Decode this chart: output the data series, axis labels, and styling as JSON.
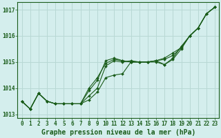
{
  "xlabel": "Graphe pression niveau de la mer (hPa)",
  "bg_color": "#d4eeed",
  "grid_color": "#b8d8d4",
  "line_color": "#1a5c1a",
  "marker_color": "#1a5c1a",
  "hours": [
    0,
    1,
    2,
    3,
    4,
    5,
    6,
    7,
    8,
    9,
    10,
    11,
    12,
    13,
    14,
    15,
    16,
    17,
    18,
    19,
    20,
    21,
    22,
    23
  ],
  "series": [
    [
      1013.5,
      1013.2,
      1013.8,
      1013.5,
      1013.4,
      1013.4,
      1013.4,
      1013.4,
      1013.55,
      1013.85,
      1014.4,
      1014.5,
      1014.55,
      1015.0,
      1015.0,
      1015.0,
      1015.05,
      1015.15,
      1015.35,
      1015.55,
      1016.0,
      1016.3,
      1016.85,
      1017.1
    ],
    [
      1013.5,
      1013.2,
      1013.8,
      1013.5,
      1013.4,
      1013.4,
      1013.4,
      1013.4,
      1013.7,
      1014.0,
      1014.85,
      1015.05,
      1015.0,
      1015.05,
      1015.0,
      1015.0,
      1015.0,
      1014.9,
      1015.15,
      1015.6,
      1016.0,
      1016.3,
      1016.85,
      1017.1
    ],
    [
      1013.5,
      1013.2,
      1013.8,
      1013.5,
      1013.4,
      1013.4,
      1013.4,
      1013.4,
      1014.0,
      1014.4,
      1014.95,
      1015.1,
      1015.05,
      1015.0,
      1015.0,
      1015.0,
      1015.05,
      1014.9,
      1015.1,
      1015.5,
      1016.0,
      1016.3,
      1016.85,
      1017.1
    ],
    [
      1013.5,
      1013.2,
      1013.8,
      1013.5,
      1013.4,
      1013.4,
      1013.4,
      1013.4,
      1013.9,
      1014.3,
      1015.05,
      1015.15,
      1015.05,
      1015.0,
      1015.0,
      1015.0,
      1015.05,
      1015.1,
      1015.25,
      1015.55,
      1016.0,
      1016.3,
      1016.85,
      1017.1
    ]
  ],
  "ylim": [
    1012.85,
    1017.3
  ],
  "yticks": [
    1013,
    1014,
    1015,
    1016,
    1017
  ],
  "xticks": [
    0,
    1,
    2,
    3,
    4,
    5,
    6,
    7,
    8,
    9,
    10,
    11,
    12,
    13,
    14,
    15,
    16,
    17,
    18,
    19,
    20,
    21,
    22,
    23
  ],
  "tick_fontsize": 5.5,
  "xlabel_fontsize": 7.0
}
